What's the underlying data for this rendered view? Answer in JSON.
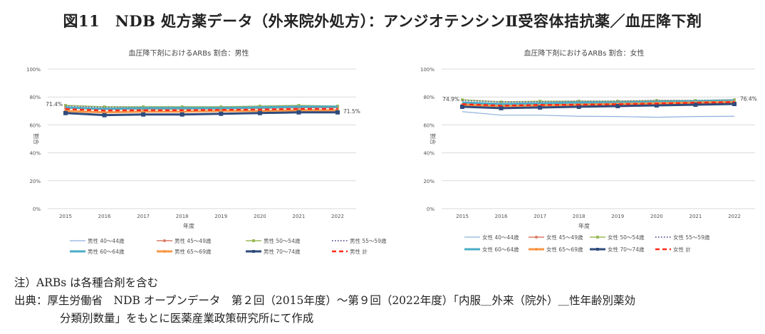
{
  "figure_title": "図11　NDB 処方薬データ（外来院外処方）：アンジオテンシンⅡ受容体拮抗薬／血圧降下剤",
  "notes": {
    "note": "注）ARBs は各種合剤を含む",
    "source1": "出典：厚生労働省　NDB オープンデータ　第２回（2015年度）～第９回（2022年度）「内服＿外来（院外）＿性年齢別薬効",
    "source2": "分類別数量」をもとに医薬産業政策研究所にて作成"
  },
  "chart_data": [
    {
      "type": "line",
      "title": "血圧降下剤におけるARBs 割合：男性",
      "xlabel": "年度",
      "ylabel": "割合",
      "categories": [
        "2015",
        "2016",
        "2017",
        "2018",
        "2019",
        "2020",
        "2021",
        "2022"
      ],
      "yticks": [
        "0%",
        "20%",
        "40%",
        "60%",
        "80%",
        "100%"
      ],
      "ylim": [
        0,
        100
      ],
      "grid": true,
      "legend": "bottom",
      "annotations": [
        "71.4%",
        "71.5%"
      ],
      "series": [
        {
          "name": "男性 40～44歳",
          "color": "#8fb0dc",
          "style": "thin",
          "values": [
            72.5,
            71.8,
            72,
            72,
            72,
            72.3,
            72.8,
            72.8
          ]
        },
        {
          "name": "男性 45～49歳",
          "color": "#d97b66",
          "style": "dot-marker",
          "values": [
            72,
            71,
            71.3,
            71.3,
            71.5,
            71.8,
            72.3,
            72.3
          ]
        },
        {
          "name": "男性 50～54歳",
          "color": "#9bbb59",
          "style": "square-marker",
          "values": [
            74,
            73,
            73,
            73,
            73,
            73.5,
            74,
            73.5
          ]
        },
        {
          "name": "男性 55～59歳",
          "color": "#7060a0",
          "style": "dotted",
          "values": [
            73.5,
            72.5,
            72.5,
            72.5,
            72.5,
            73,
            73.5,
            73.5
          ]
        },
        {
          "name": "男性 60～64歳",
          "color": "#4bacc6",
          "style": "thick",
          "values": [
            72.5,
            71.5,
            72,
            72,
            72,
            72.5,
            73,
            73
          ]
        },
        {
          "name": "男性 65～69歳",
          "color": "#f79646",
          "style": "thick-marker",
          "values": [
            70,
            69,
            69.5,
            69.5,
            70,
            70,
            70.5,
            70.5
          ]
        },
        {
          "name": "男性 70～74歳",
          "color": "#2f4b7c",
          "style": "thick-square",
          "values": [
            68.5,
            67,
            67.5,
            67.5,
            68,
            68.5,
            69,
            69
          ]
        },
        {
          "name": "男性 計",
          "color": "#ff2a1a",
          "style": "dashed",
          "values": [
            71.4,
            70.3,
            70.5,
            70.5,
            70.8,
            71,
            71.5,
            71.5
          ]
        }
      ]
    },
    {
      "type": "line",
      "title": "血圧降下剤におけるARBs 割合：女性",
      "xlabel": "年度",
      "ylabel": "割合",
      "categories": [
        "2015",
        "2016",
        "2017",
        "2018",
        "2019",
        "2020",
        "2021",
        "2022"
      ],
      "yticks": [
        "0%",
        "20%",
        "40%",
        "60%",
        "80%",
        "100%"
      ],
      "ylim": [
        0,
        100
      ],
      "grid": true,
      "legend": "bottom",
      "annotations": [
        "74.9%",
        "76.4%"
      ],
      "series": [
        {
          "name": "女性 40～44歳",
          "color": "#8fb0dc",
          "style": "thin",
          "values": [
            69.5,
            67,
            67,
            66.2,
            66,
            65.5,
            66,
            66.2
          ]
        },
        {
          "name": "女性 45～49歳",
          "color": "#d97b66",
          "style": "dot-marker",
          "values": [
            74.5,
            73.5,
            74,
            74,
            74.5,
            75,
            75.5,
            76
          ]
        },
        {
          "name": "女性 50～54歳",
          "color": "#9bbb59",
          "style": "square-marker",
          "values": [
            78,
            76.5,
            77,
            77,
            77,
            77.5,
            77.5,
            78
          ]
        },
        {
          "name": "女性 55～59歳",
          "color": "#7060a0",
          "style": "dotted",
          "values": [
            77.5,
            76.5,
            76.5,
            77,
            77,
            77.5,
            77.5,
            78
          ]
        },
        {
          "name": "女性 60～64歳",
          "color": "#4bacc6",
          "style": "thick",
          "values": [
            76,
            75,
            75.5,
            76,
            76,
            76.5,
            77,
            77.5
          ]
        },
        {
          "name": "女性 65～69歳",
          "color": "#f79646",
          "style": "thick-marker",
          "values": [
            74.5,
            73.5,
            74,
            74.5,
            75,
            75.5,
            76,
            76.5
          ]
        },
        {
          "name": "女性 70～74歳",
          "color": "#2f4b7c",
          "style": "thick-square",
          "values": [
            73,
            72,
            72.5,
            73,
            73.5,
            74,
            74.5,
            75
          ]
        },
        {
          "name": "女性 計",
          "color": "#ff2a1a",
          "style": "dashed",
          "values": [
            74.9,
            73.8,
            74.3,
            74.5,
            74.8,
            75.3,
            75.9,
            76.4
          ]
        }
      ]
    }
  ]
}
